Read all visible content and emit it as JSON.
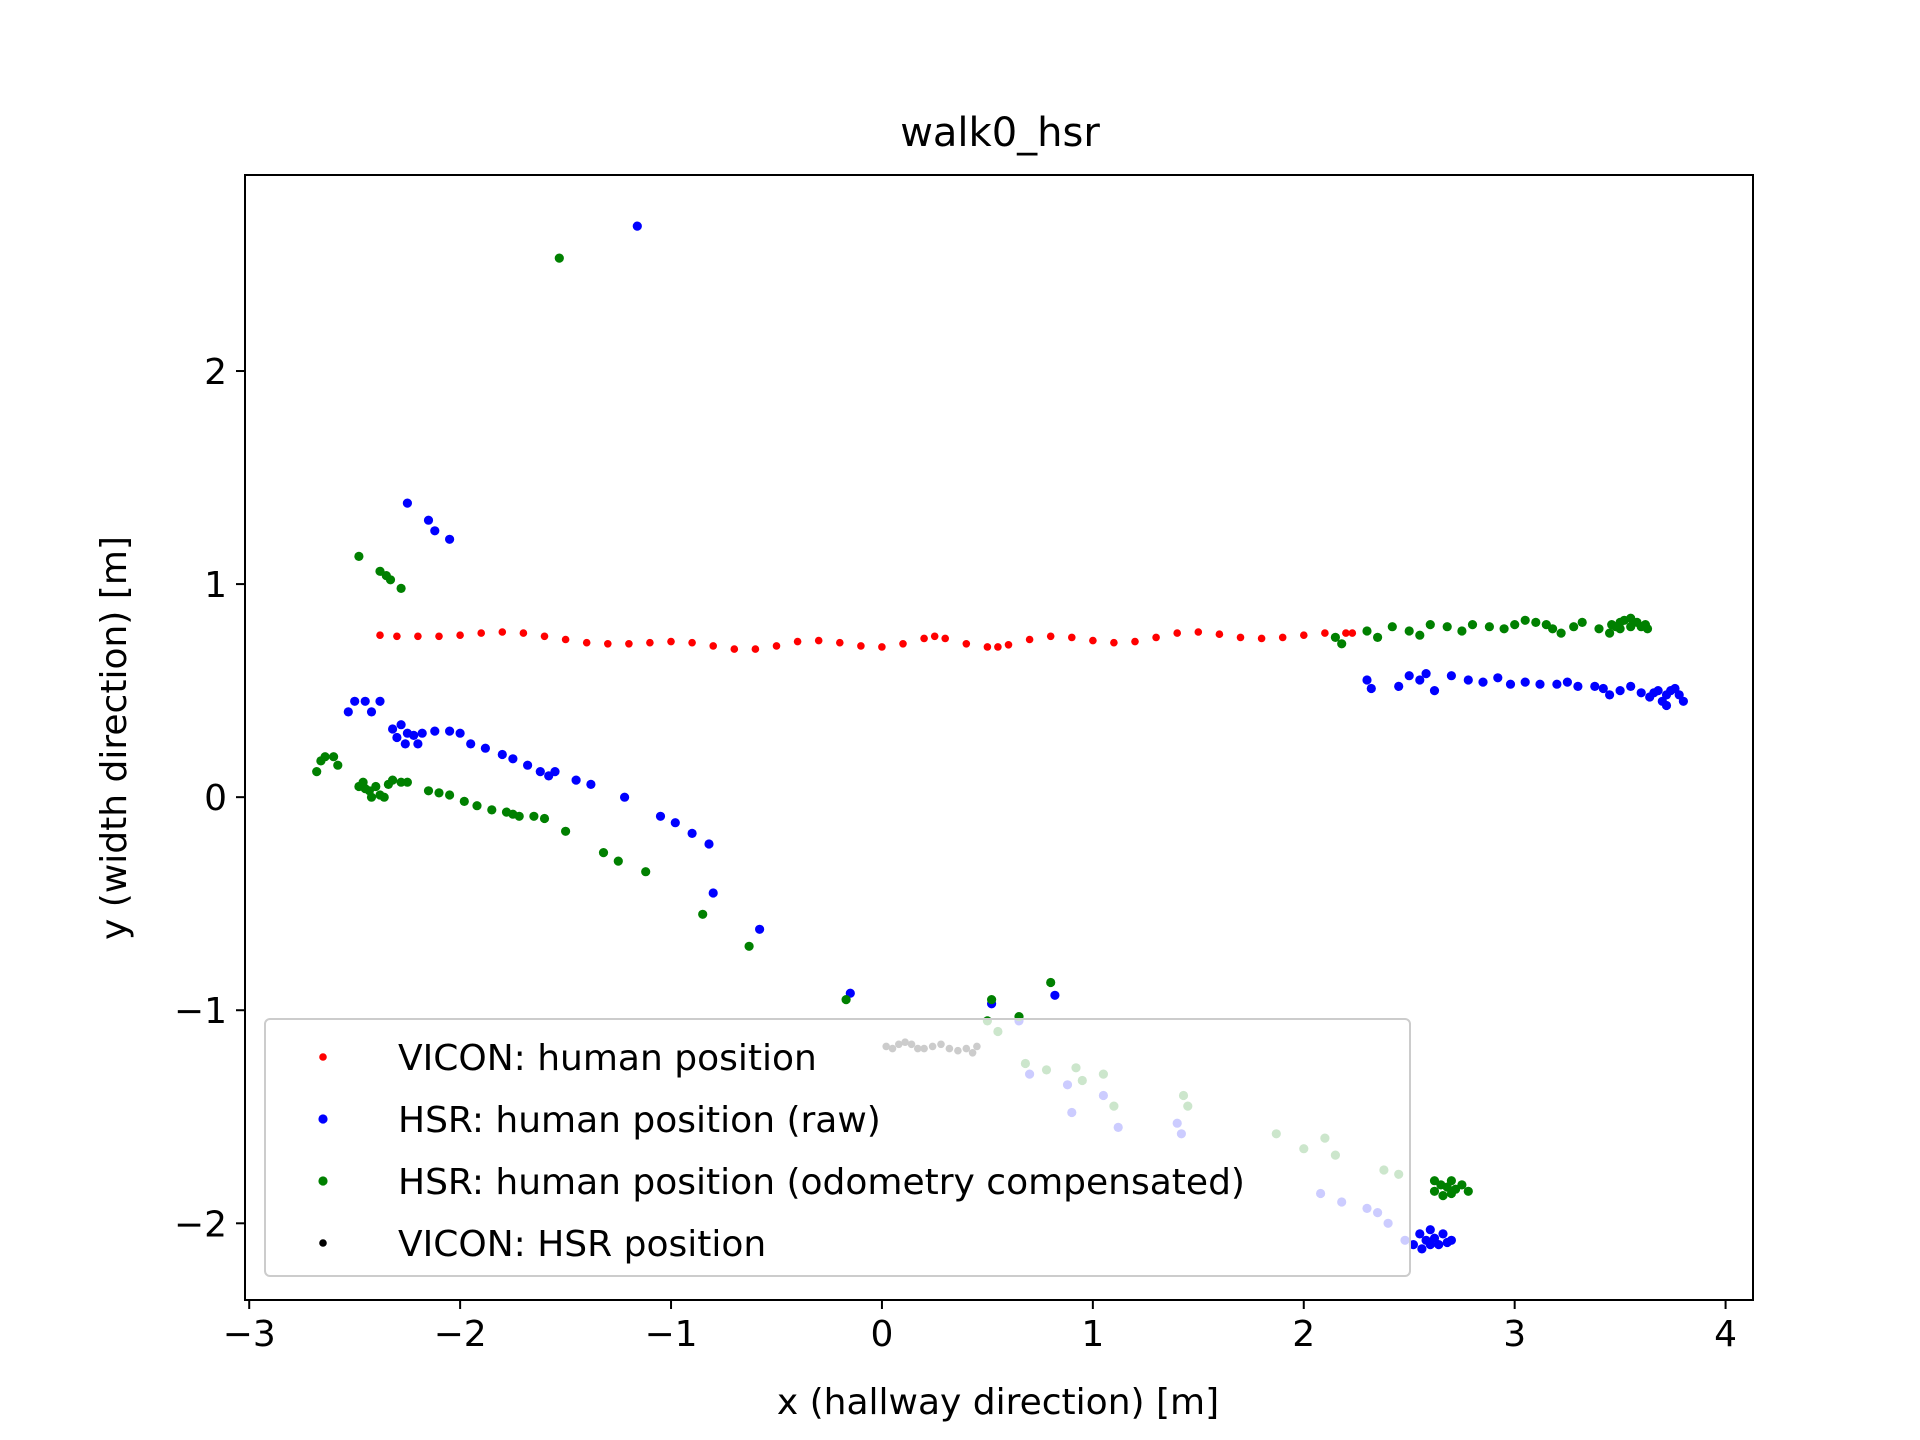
{
  "chart_data": {
    "type": "scatter",
    "title": "walk0_hsr",
    "xlabel": "x (hallway direction) [m]",
    "ylabel": "y (width direction) [m]",
    "xlim": [
      -3.02,
      4.13
    ],
    "ylim": [
      -2.36,
      2.92
    ],
    "grid": false,
    "legend_position": "lower-left",
    "x_ticks": [
      -3,
      -2,
      -1,
      0,
      1,
      2,
      3,
      4
    ],
    "x_tick_labels": [
      "−3",
      "−2",
      "−1",
      "0",
      "1",
      "2",
      "3",
      "4"
    ],
    "y_ticks": [
      -2,
      -1,
      0,
      1,
      2
    ],
    "y_tick_labels": [
      "−2",
      "−1",
      "0",
      "1",
      "2"
    ],
    "series": [
      {
        "name": "VICON: human position",
        "color": "#ff0000",
        "marker_size": "small",
        "points": [
          [
            -2.38,
            0.76
          ],
          [
            -2.3,
            0.755
          ],
          [
            -2.2,
            0.755
          ],
          [
            -2.1,
            0.755
          ],
          [
            -2.0,
            0.76
          ],
          [
            -1.9,
            0.77
          ],
          [
            -1.8,
            0.775
          ],
          [
            -1.7,
            0.77
          ],
          [
            -1.6,
            0.755
          ],
          [
            -1.5,
            0.74
          ],
          [
            -1.4,
            0.725
          ],
          [
            -1.3,
            0.72
          ],
          [
            -1.2,
            0.72
          ],
          [
            -1.1,
            0.725
          ],
          [
            -1.0,
            0.73
          ],
          [
            -0.9,
            0.725
          ],
          [
            -0.8,
            0.71
          ],
          [
            -0.7,
            0.695
          ],
          [
            -0.6,
            0.695
          ],
          [
            -0.5,
            0.71
          ],
          [
            -0.4,
            0.73
          ],
          [
            -0.3,
            0.735
          ],
          [
            -0.2,
            0.725
          ],
          [
            -0.1,
            0.71
          ],
          [
            0.0,
            0.705
          ],
          [
            0.1,
            0.72
          ],
          [
            0.2,
            0.745
          ],
          [
            0.25,
            0.755
          ],
          [
            0.3,
            0.745
          ],
          [
            0.4,
            0.72
          ],
          [
            0.5,
            0.705
          ],
          [
            0.55,
            0.705
          ],
          [
            0.6,
            0.715
          ],
          [
            0.7,
            0.74
          ],
          [
            0.8,
            0.755
          ],
          [
            0.9,
            0.75
          ],
          [
            1.0,
            0.735
          ],
          [
            1.1,
            0.725
          ],
          [
            1.2,
            0.73
          ],
          [
            1.3,
            0.75
          ],
          [
            1.4,
            0.77
          ],
          [
            1.5,
            0.775
          ],
          [
            1.6,
            0.765
          ],
          [
            1.7,
            0.75
          ],
          [
            1.8,
            0.745
          ],
          [
            1.9,
            0.75
          ],
          [
            2.0,
            0.76
          ],
          [
            2.1,
            0.77
          ],
          [
            2.2,
            0.77
          ],
          [
            2.23,
            0.77
          ]
        ]
      },
      {
        "name": "HSR: human position (raw)",
        "color": "#0000ff",
        "marker_size": "medium",
        "points": [
          [
            -1.16,
            2.68
          ],
          [
            -2.25,
            1.38
          ],
          [
            -2.15,
            1.3
          ],
          [
            -2.12,
            1.25
          ],
          [
            -2.05,
            1.21
          ],
          [
            -2.53,
            0.4
          ],
          [
            -2.5,
            0.45
          ],
          [
            -2.45,
            0.45
          ],
          [
            -2.42,
            0.4
          ],
          [
            -2.38,
            0.45
          ],
          [
            -2.32,
            0.32
          ],
          [
            -2.28,
            0.34
          ],
          [
            -2.25,
            0.3
          ],
          [
            -2.3,
            0.28
          ],
          [
            -2.26,
            0.25
          ],
          [
            -2.22,
            0.29
          ],
          [
            -2.2,
            0.25
          ],
          [
            -2.18,
            0.3
          ],
          [
            -2.12,
            0.31
          ],
          [
            -2.05,
            0.31
          ],
          [
            -2.0,
            0.3
          ],
          [
            -1.95,
            0.25
          ],
          [
            -1.88,
            0.23
          ],
          [
            -1.8,
            0.2
          ],
          [
            -1.75,
            0.18
          ],
          [
            -1.68,
            0.15
          ],
          [
            -1.62,
            0.12
          ],
          [
            -1.58,
            0.1
          ],
          [
            -1.55,
            0.12
          ],
          [
            -1.45,
            0.08
          ],
          [
            -1.38,
            0.06
          ],
          [
            -1.22,
            0.0
          ],
          [
            -1.05,
            -0.09
          ],
          [
            -0.98,
            -0.12
          ],
          [
            -0.9,
            -0.17
          ],
          [
            -0.82,
            -0.22
          ],
          [
            -0.8,
            -0.45
          ],
          [
            -0.58,
            -0.62
          ],
          [
            -0.15,
            -0.92
          ],
          [
            0.52,
            -0.97
          ],
          [
            0.82,
            -0.93
          ],
          [
            0.65,
            -1.05
          ],
          [
            0.7,
            -1.3
          ],
          [
            0.88,
            -1.35
          ],
          [
            0.9,
            -1.48
          ],
          [
            1.05,
            -1.4
          ],
          [
            1.12,
            -1.55
          ],
          [
            1.4,
            -1.53
          ],
          [
            1.42,
            -1.58
          ],
          [
            2.08,
            -1.86
          ],
          [
            2.18,
            -1.9
          ],
          [
            2.3,
            -1.93
          ],
          [
            2.35,
            -1.95
          ],
          [
            2.4,
            -2.0
          ],
          [
            2.48,
            -2.08
          ],
          [
            2.52,
            -2.1
          ],
          [
            2.55,
            -2.05
          ],
          [
            2.58,
            -2.08
          ],
          [
            2.6,
            -2.03
          ],
          [
            2.62,
            -2.07
          ],
          [
            2.64,
            -2.1
          ],
          [
            2.66,
            -2.05
          ],
          [
            2.68,
            -2.09
          ],
          [
            2.7,
            -2.08
          ],
          [
            2.56,
            -2.12
          ],
          [
            2.6,
            -2.1
          ],
          [
            2.3,
            0.55
          ],
          [
            2.32,
            0.51
          ],
          [
            2.45,
            0.52
          ],
          [
            2.5,
            0.57
          ],
          [
            2.55,
            0.55
          ],
          [
            2.58,
            0.58
          ],
          [
            2.62,
            0.5
          ],
          [
            2.7,
            0.57
          ],
          [
            2.78,
            0.55
          ],
          [
            2.85,
            0.54
          ],
          [
            2.92,
            0.56
          ],
          [
            2.98,
            0.53
          ],
          [
            3.05,
            0.54
          ],
          [
            3.12,
            0.53
          ],
          [
            3.2,
            0.53
          ],
          [
            3.25,
            0.54
          ],
          [
            3.3,
            0.52
          ],
          [
            3.38,
            0.52
          ],
          [
            3.42,
            0.51
          ],
          [
            3.45,
            0.48
          ],
          [
            3.5,
            0.5
          ],
          [
            3.55,
            0.52
          ],
          [
            3.6,
            0.49
          ],
          [
            3.64,
            0.47
          ],
          [
            3.68,
            0.5
          ],
          [
            3.7,
            0.45
          ],
          [
            3.72,
            0.48
          ],
          [
            3.74,
            0.5
          ],
          [
            3.76,
            0.51
          ],
          [
            3.78,
            0.48
          ],
          [
            3.8,
            0.45
          ],
          [
            3.72,
            0.43
          ],
          [
            3.66,
            0.49
          ]
        ]
      },
      {
        "name": "HSR: human position (odometry compensated)",
        "color": "#008000",
        "marker_size": "medium",
        "points": [
          [
            -1.53,
            2.53
          ],
          [
            -2.48,
            1.13
          ],
          [
            -2.38,
            1.06
          ],
          [
            -2.35,
            1.04
          ],
          [
            -2.33,
            1.02
          ],
          [
            -2.28,
            0.98
          ],
          [
            -2.68,
            0.12
          ],
          [
            -2.66,
            0.17
          ],
          [
            -2.64,
            0.19
          ],
          [
            -2.6,
            0.19
          ],
          [
            -2.58,
            0.15
          ],
          [
            -2.48,
            0.05
          ],
          [
            -2.46,
            0.07
          ],
          [
            -2.45,
            0.04
          ],
          [
            -2.43,
            0.03
          ],
          [
            -2.42,
            0.0
          ],
          [
            -2.4,
            0.05
          ],
          [
            -2.38,
            0.01
          ],
          [
            -2.36,
            0.0
          ],
          [
            -2.34,
            0.06
          ],
          [
            -2.32,
            0.08
          ],
          [
            -2.28,
            0.07
          ],
          [
            -2.25,
            0.07
          ],
          [
            -2.15,
            0.03
          ],
          [
            -2.1,
            0.02
          ],
          [
            -2.05,
            0.01
          ],
          [
            -1.98,
            -0.02
          ],
          [
            -1.92,
            -0.04
          ],
          [
            -1.85,
            -0.06
          ],
          [
            -1.78,
            -0.07
          ],
          [
            -1.75,
            -0.08
          ],
          [
            -1.72,
            -0.09
          ],
          [
            -1.65,
            -0.09
          ],
          [
            -1.6,
            -0.1
          ],
          [
            -1.5,
            -0.16
          ],
          [
            -1.32,
            -0.26
          ],
          [
            -1.25,
            -0.3
          ],
          [
            -1.12,
            -0.35
          ],
          [
            -0.85,
            -0.55
          ],
          [
            -0.63,
            -0.7
          ],
          [
            -0.17,
            -0.95
          ],
          [
            0.52,
            -0.95
          ],
          [
            0.65,
            -1.03
          ],
          [
            0.8,
            -0.87
          ],
          [
            0.5,
            -1.05
          ],
          [
            0.55,
            -1.1
          ],
          [
            0.68,
            -1.25
          ],
          [
            0.78,
            -1.28
          ],
          [
            0.92,
            -1.27
          ],
          [
            0.95,
            -1.33
          ],
          [
            1.05,
            -1.3
          ],
          [
            1.1,
            -1.45
          ],
          [
            1.43,
            -1.4
          ],
          [
            1.45,
            -1.45
          ],
          [
            1.87,
            -1.58
          ],
          [
            2.0,
            -1.65
          ],
          [
            2.1,
            -1.6
          ],
          [
            2.15,
            -1.68
          ],
          [
            2.38,
            -1.75
          ],
          [
            2.45,
            -1.77
          ],
          [
            2.62,
            -1.85
          ],
          [
            2.65,
            -1.82
          ],
          [
            2.68,
            -1.83
          ],
          [
            2.7,
            -1.8
          ],
          [
            2.72,
            -1.84
          ],
          [
            2.75,
            -1.82
          ],
          [
            2.78,
            -1.85
          ],
          [
            2.62,
            -1.8
          ],
          [
            2.66,
            -1.87
          ],
          [
            2.7,
            -1.86
          ],
          [
            2.15,
            0.75
          ],
          [
            2.18,
            0.72
          ],
          [
            2.3,
            0.78
          ],
          [
            2.35,
            0.75
          ],
          [
            2.42,
            0.8
          ],
          [
            2.5,
            0.78
          ],
          [
            2.55,
            0.76
          ],
          [
            2.6,
            0.81
          ],
          [
            2.68,
            0.8
          ],
          [
            2.75,
            0.78
          ],
          [
            2.8,
            0.81
          ],
          [
            2.88,
            0.8
          ],
          [
            2.95,
            0.79
          ],
          [
            3.0,
            0.81
          ],
          [
            3.05,
            0.83
          ],
          [
            3.1,
            0.82
          ],
          [
            3.15,
            0.81
          ],
          [
            3.18,
            0.79
          ],
          [
            3.22,
            0.77
          ],
          [
            3.28,
            0.8
          ],
          [
            3.32,
            0.82
          ],
          [
            3.4,
            0.79
          ],
          [
            3.45,
            0.77
          ],
          [
            3.48,
            0.8
          ],
          [
            3.5,
            0.82
          ],
          [
            3.52,
            0.83
          ],
          [
            3.55,
            0.84
          ],
          [
            3.58,
            0.82
          ],
          [
            3.6,
            0.8
          ],
          [
            3.62,
            0.81
          ],
          [
            3.55,
            0.8
          ],
          [
            3.5,
            0.79
          ],
          [
            3.46,
            0.81
          ],
          [
            3.63,
            0.79
          ]
        ]
      },
      {
        "name": "VICON: HSR position",
        "color": "#000000",
        "marker_size": "small",
        "points": [
          [
            0.02,
            -1.17
          ],
          [
            0.05,
            -1.18
          ],
          [
            0.08,
            -1.16
          ],
          [
            0.11,
            -1.15
          ],
          [
            0.14,
            -1.16
          ],
          [
            0.17,
            -1.18
          ],
          [
            0.2,
            -1.18
          ],
          [
            0.24,
            -1.17
          ],
          [
            0.28,
            -1.16
          ],
          [
            0.32,
            -1.18
          ],
          [
            0.36,
            -1.19
          ],
          [
            0.4,
            -1.18
          ],
          [
            0.43,
            -1.2
          ],
          [
            0.45,
            -1.17
          ]
        ]
      }
    ]
  }
}
